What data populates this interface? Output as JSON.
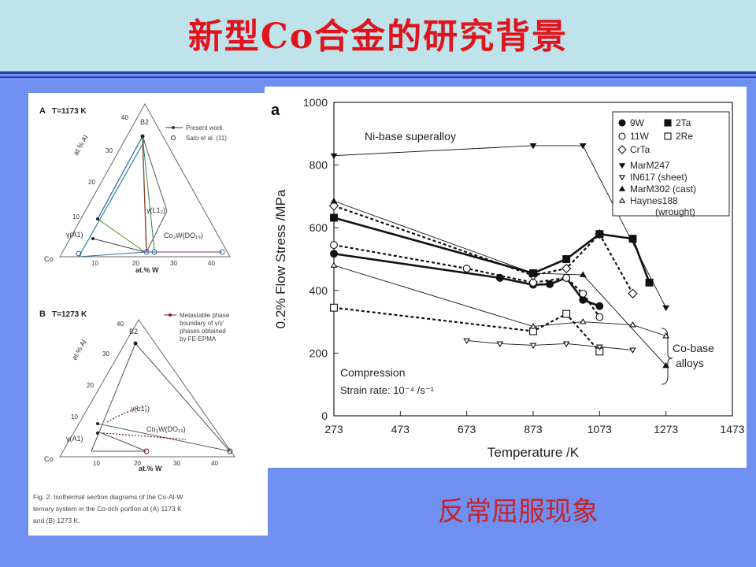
{
  "title": "新型Co合金的研究背景",
  "caption": "反常屈服现象",
  "colors": {
    "title": "#e0141c",
    "caption": "#c8242a",
    "background": "#6f90f0",
    "header": "#bfe3ea"
  },
  "phase_diagrams": {
    "a": {
      "label": "A",
      "condition": "T=1173 K",
      "legend": [
        "Present work",
        "Sato et al. (11)"
      ],
      "y_axis": "at.% Al",
      "x_axis": "at.% W",
      "corner": "Co",
      "ticks_left": [
        "40",
        "30",
        "20",
        "10"
      ],
      "ticks_bottom": [
        "10",
        "20",
        "30",
        "40"
      ],
      "phases": [
        "B2",
        "γ(L1₂)",
        "γ(A1)",
        "Co₃W(DO₁₉)"
      ]
    },
    "b": {
      "label": "B",
      "condition": "T=1273 K",
      "legend": [
        "Metastable phase",
        "boundary of γ/γ'",
        "phases obtained",
        "by FE-EPMA"
      ],
      "y_axis": "at.% Al",
      "x_axis": "at.% W",
      "corner": "Co",
      "ticks_left": [
        "40",
        "30",
        "20",
        "10"
      ],
      "ticks_bottom": [
        "10",
        "20",
        "30",
        "40"
      ],
      "phases": [
        "B2",
        "γ(L1₂)",
        "γ(A1)",
        "Co₃W(DO₁₉)"
      ]
    },
    "fig_caption": [
      "Fig. 2. Isothermal section diagrams of the Co-Al-W",
      "ternary system in the Co-rich portion at (A) 1173 K",
      "and (B) 1273 K."
    ]
  },
  "chart_data": {
    "type": "line",
    "panel_label": "a",
    "xlabel": "Temperature /K",
    "ylabel": "0.2% Flow Stress /MPa",
    "xlim": [
      273,
      1473
    ],
    "ylim": [
      0,
      1000
    ],
    "xticks": [
      273,
      473,
      673,
      873,
      1073,
      1273,
      1473
    ],
    "yticks": [
      0,
      200,
      400,
      600,
      800,
      1000
    ],
    "annotations": [
      "Ni-base superalloy",
      "Compression",
      "Strain rate: 10⁻⁴ /s⁻¹",
      "Co-base",
      "alloys"
    ],
    "legend_position": "top-right",
    "series": [
      {
        "name": "9W",
        "marker": "circle-filled",
        "style": "solid-thick",
        "points": [
          [
            273,
            517
          ],
          [
            773,
            440
          ],
          [
            873,
            418
          ],
          [
            923,
            420
          ],
          [
            973,
            440
          ],
          [
            1023,
            370
          ],
          [
            1073,
            350
          ]
        ]
      },
      {
        "name": "11W",
        "marker": "circle-open",
        "style": "dashed",
        "points": [
          [
            273,
            545
          ],
          [
            673,
            470
          ],
          [
            873,
            425
          ],
          [
            973,
            440
          ],
          [
            1023,
            390
          ],
          [
            1073,
            315
          ]
        ]
      },
      {
        "name": "CrTa",
        "marker": "diamond-open",
        "style": "dashed",
        "points": [
          [
            273,
            670
          ],
          [
            873,
            448
          ],
          [
            973,
            470
          ],
          [
            1073,
            580
          ],
          [
            1173,
            390
          ]
        ]
      },
      {
        "name": "2Ta",
        "marker": "square-filled",
        "style": "solid-thick",
        "points": [
          [
            273,
            632
          ],
          [
            873,
            455
          ],
          [
            973,
            500
          ],
          [
            1073,
            580
          ],
          [
            1173,
            565
          ],
          [
            1223,
            425
          ]
        ]
      },
      {
        "name": "2Re",
        "marker": "square-open",
        "style": "dashed",
        "points": [
          [
            273,
            345
          ],
          [
            873,
            270
          ],
          [
            973,
            325
          ],
          [
            1073,
            205
          ]
        ]
      },
      {
        "name": "MarM247",
        "marker": "triangle-down-filled",
        "style": "thin",
        "points": [
          [
            273,
            830
          ],
          [
            873,
            862
          ],
          [
            1023,
            862
          ],
          [
            1273,
            345
          ]
        ]
      },
      {
        "name": "IN617 (sheet)",
        "marker": "triangle-down-open",
        "style": "thin",
        "points": [
          [
            673,
            240
          ],
          [
            773,
            230
          ],
          [
            873,
            225
          ],
          [
            973,
            230
          ],
          [
            1073,
            220
          ],
          [
            1173,
            210
          ]
        ]
      },
      {
        "name": "MarM302 (cast)",
        "marker": "triangle-up-filled",
        "style": "thin",
        "points": [
          [
            273,
            685
          ],
          [
            873,
            455
          ],
          [
            1023,
            450
          ],
          [
            1273,
            160
          ]
        ]
      },
      {
        "name": "Haynes188 (wrought)",
        "marker": "triangle-up-open",
        "style": "thin",
        "points": [
          [
            273,
            480
          ],
          [
            873,
            285
          ],
          [
            1023,
            300
          ],
          [
            1173,
            290
          ],
          [
            1273,
            255
          ]
        ]
      }
    ]
  }
}
